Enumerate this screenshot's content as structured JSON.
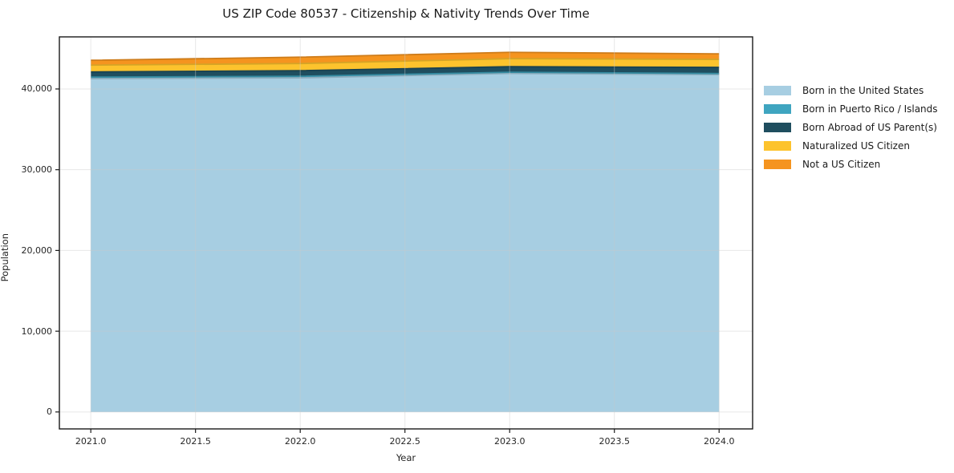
{
  "chart_data": {
    "type": "area",
    "stacked": true,
    "title": "US ZIP Code 80537 - Citizenship & Nativity Trends Over Time",
    "xlabel": "Year",
    "ylabel": "Population",
    "x": [
      2021,
      2022,
      2023,
      2024
    ],
    "series": [
      {
        "name": "Born in the United States",
        "color": "#A7CEE2",
        "values": [
          41280,
          41380,
          41920,
          41780
        ]
      },
      {
        "name": "Born in Puerto Rico / Islands",
        "color": "#3FA5C0",
        "values": [
          190,
          190,
          150,
          130
        ]
      },
      {
        "name": "Born Abroad of US Parent(s)",
        "color": "#1F4E5F",
        "values": [
          640,
          690,
          690,
          760
        ]
      },
      {
        "name": "Naturalized US Citizen",
        "color": "#FDC32D",
        "values": [
          840,
          890,
          990,
          990
        ]
      },
      {
        "name": "Not a US Citizen",
        "color": "#F5941F",
        "values": [
          600,
          790,
          790,
          690
        ]
      }
    ],
    "stack_totals": [
      43550,
      43940,
      44540,
      44350
    ],
    "xlim": [
      2020.85,
      2024.16
    ],
    "ylim": [
      -2100,
      46450
    ],
    "xticks": {
      "values": [
        2021.0,
        2021.5,
        2022.0,
        2022.5,
        2023.0,
        2023.5,
        2024.0
      ],
      "labels": [
        "2021.0",
        "2021.5",
        "2022.0",
        "2022.5",
        "2023.0",
        "2023.5",
        "2024.0"
      ]
    },
    "yticks": {
      "values": [
        0,
        10000,
        20000,
        30000,
        40000
      ],
      "labels": [
        "0",
        "10,000",
        "20,000",
        "30,000",
        "40,000"
      ]
    },
    "grid": true,
    "legend_position": "right"
  },
  "colors": {
    "spine": "#1a1a1a",
    "grid": "#c9c9c9",
    "tick_label": "#262626",
    "title": "#1a1a1a",
    "background": "#ffffff"
  }
}
